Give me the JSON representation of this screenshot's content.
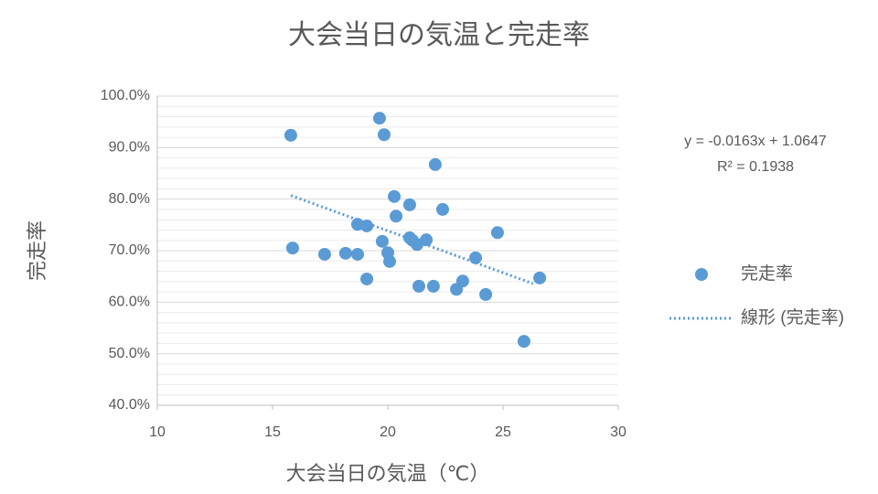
{
  "chart_data": {
    "type": "scatter",
    "title": "大会当日の気温と完走率",
    "x_label": "大会当日の気温（℃）",
    "y_label": "完走率",
    "annotations": [
      "y = -0.0163x + 1.0647",
      "R² = 0.1938"
    ],
    "xlim": [
      10,
      30
    ],
    "xticks": [
      10,
      15,
      20,
      25,
      30
    ],
    "ylim": [
      40,
      100
    ],
    "yticks": [
      {
        "value": 40,
        "label": "40.0%"
      },
      {
        "value": 50,
        "label": "50.0%"
      },
      {
        "value": 60,
        "label": "60.0%"
      },
      {
        "value": 70,
        "label": "70.0%"
      },
      {
        "value": 80,
        "label": "80.0%"
      },
      {
        "value": 90,
        "label": "90.0%"
      },
      {
        "value": 100,
        "label": "100.0%"
      }
    ],
    "grid": true,
    "legend": "right",
    "series": [
      {
        "name": "完走率",
        "color": "#5b9bd5",
        "kind": "points",
        "x": [
          15.79,
          15.87,
          17.26,
          18.17,
          18.69,
          18.69,
          19.09,
          19.09,
          19.64,
          19.84,
          19.76,
          20.0,
          20.08,
          20.28,
          20.36,
          20.95,
          20.95,
          21.07,
          21.27,
          21.67,
          21.35,
          21.98,
          22.06,
          22.38,
          22.98,
          23.25,
          23.81,
          24.25,
          24.76,
          25.91,
          26.59
        ],
        "values": [
          92.4,
          70.5,
          69.3,
          69.5,
          75.1,
          69.3,
          74.8,
          64.5,
          95.7,
          92.5,
          71.8,
          69.6,
          67.9,
          80.5,
          76.7,
          78.9,
          72.5,
          72.0,
          71.2,
          72.1,
          63.1,
          63.1,
          86.7,
          78.0,
          62.5,
          64.1,
          68.6,
          61.5,
          73.5,
          52.4,
          64.7
        ]
      },
      {
        "name": "線形 (完走率)",
        "color": "#5b9bd5",
        "kind": "trendline",
        "x": [
          15.8,
          26.3
        ],
        "values": [
          80.7,
          63.6
        ]
      }
    ]
  }
}
